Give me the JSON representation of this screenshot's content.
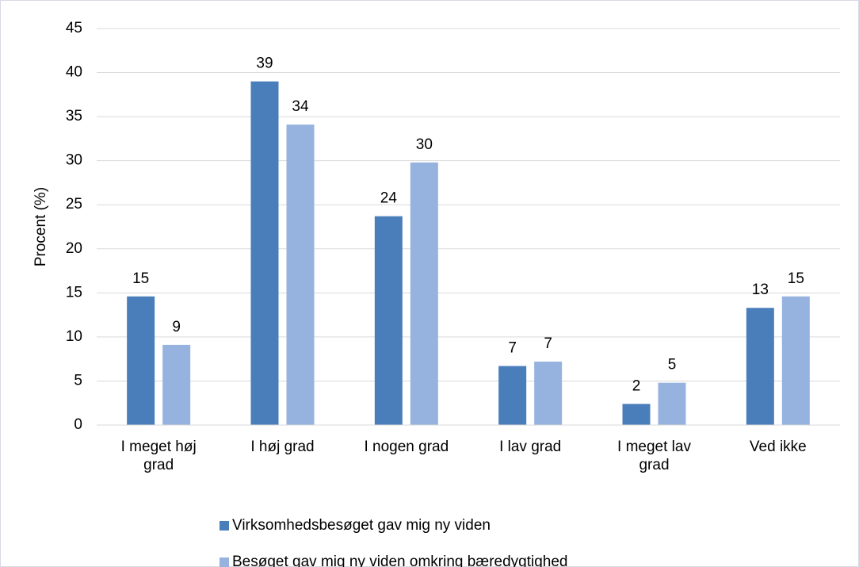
{
  "chart_data": {
    "type": "bar",
    "y_label": "Procent (%)",
    "categories": [
      "I meget høj grad",
      "I høj grad",
      "I nogen grad",
      "I lav grad",
      "I meget lav grad",
      "Ved ikke"
    ],
    "series": [
      {
        "name": "Virksomhedsbesøget gav mig ny viden",
        "color": "#4a7ebb",
        "values": [
          14.6,
          39,
          23.7,
          6.7,
          2.4,
          13.3
        ],
        "value_labels": [
          "15",
          "39",
          "24",
          "7",
          "2",
          "13"
        ]
      },
      {
        "name": "Besøget gav mig ny viden omkring bæredygtighed",
        "color": "#95b3de",
        "values": [
          9.1,
          34.1,
          29.8,
          7.2,
          4.8,
          14.6
        ],
        "value_labels": [
          "9",
          "34",
          "30",
          "7",
          "5",
          "15"
        ]
      }
    ],
    "ylim": [
      0,
      45
    ],
    "yticks": [
      0,
      5,
      10,
      15,
      20,
      25,
      30,
      35,
      40,
      45
    ],
    "grid": true
  }
}
